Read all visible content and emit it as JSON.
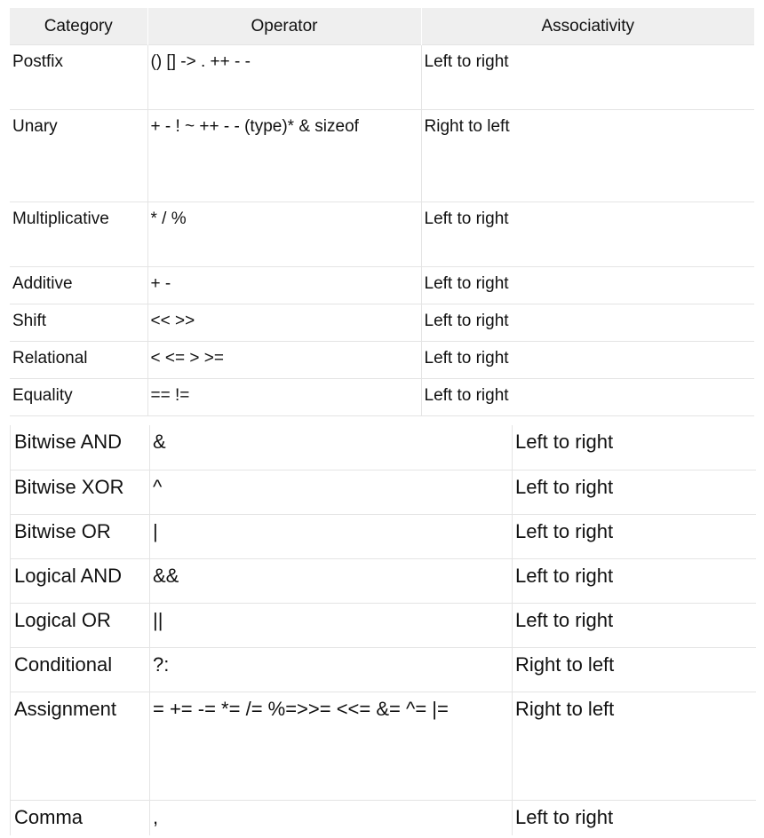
{
  "top_table": {
    "headers": [
      "Category",
      "Operator",
      "Associativity"
    ],
    "rows": [
      [
        "Postfix",
        "() [] -> . ++ - -",
        "Left to right"
      ],
      [
        "Unary",
        "+ - ! ~ ++ - - (type)* & sizeof",
        "Right to left"
      ],
      [
        "Multiplicative",
        "* / %",
        "Left to right"
      ],
      [
        "Additive",
        "+ -",
        "Left to right"
      ],
      [
        "Shift",
        "<< >>",
        "Left to right"
      ],
      [
        "Relational",
        "< <= > >=",
        "Left to right"
      ],
      [
        "Equality",
        "== !=",
        "Left to right"
      ]
    ]
  },
  "bottom_table": {
    "rows": [
      [
        "Bitwise AND",
        "&",
        "Left to right"
      ],
      [
        "Bitwise XOR",
        "^",
        "Left to right"
      ],
      [
        "Bitwise OR",
        "|",
        "Left to right"
      ],
      [
        "Logical AND",
        "&&",
        "Left to right"
      ],
      [
        "Logical OR",
        "||",
        "Left to right"
      ],
      [
        "Conditional",
        "?:",
        "Right to left"
      ],
      [
        "Assignment",
        "= += -= *= /= %=>>= <<= &= ^= |=",
        "Right to left"
      ],
      [
        "Comma",
        ",",
        "Left to right"
      ]
    ]
  }
}
